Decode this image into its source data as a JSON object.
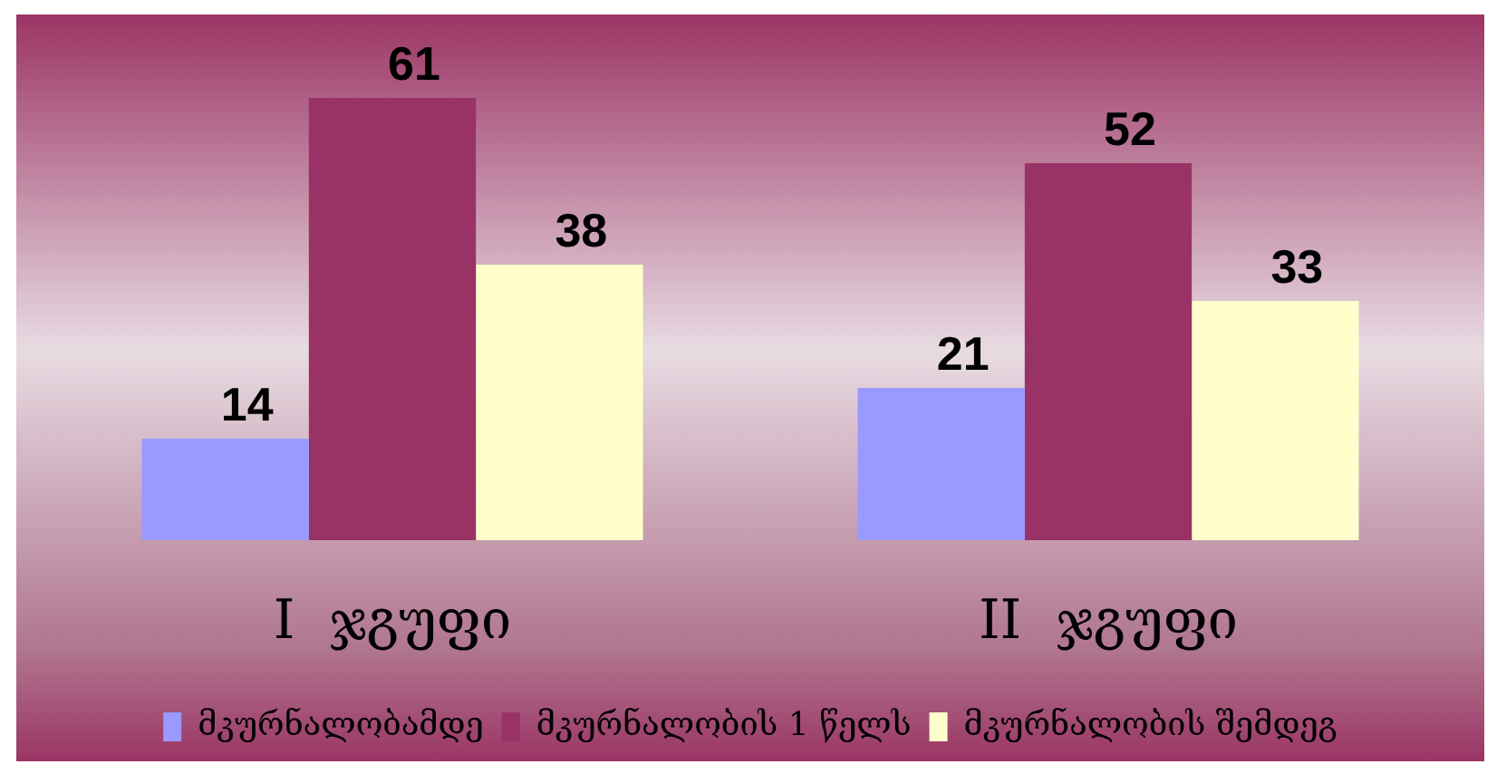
{
  "chart_data": {
    "type": "bar",
    "categories": [
      "I  ჯგუფი",
      "II  ჯგუფი"
    ],
    "series": [
      {
        "name": "მკურნალობამდე",
        "color": "#9999ff",
        "values": [
          14,
          21
        ]
      },
      {
        "name": "მკურნალობის 1 წელს",
        "color": "#993366",
        "values": [
          61,
          52
        ]
      },
      {
        "name": "მკურნალობის შემდეგ",
        "color": "#ffffcc",
        "values": [
          38,
          33
        ]
      }
    ],
    "data_labels": true,
    "legend": "bottom",
    "grid": false
  }
}
